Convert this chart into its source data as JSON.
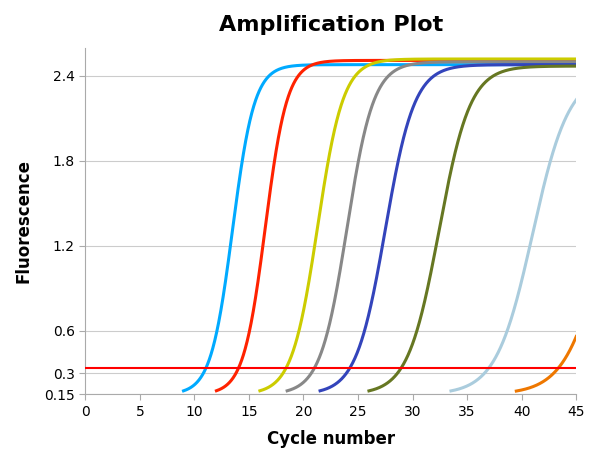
{
  "title": "Amplification Plot",
  "xlabel": "Cycle number",
  "ylabel": "Fluorescence",
  "xlim": [
    0,
    45
  ],
  "ylim": [
    0.15,
    2.6
  ],
  "yticks": [
    0.15,
    0.3,
    0.6,
    1.2,
    1.8,
    2.4
  ],
  "ytick_labels": [
    "0.15",
    "0.3",
    "0.6",
    "1.2",
    "1.8",
    "2.4"
  ],
  "xticks": [
    0,
    5,
    10,
    15,
    20,
    25,
    30,
    35,
    40,
    45
  ],
  "threshold_y": 0.335,
  "threshold_color": "#ff0000",
  "background_color": "#ffffff",
  "grid_color": "#cccccc",
  "curves": [
    {
      "color": "#00aaff",
      "x_start": 9.0,
      "ymax": 2.48,
      "ymin": 0.15,
      "k": 1.0
    },
    {
      "color": "#ff2200",
      "x_start": 12.0,
      "ymax": 2.51,
      "ymin": 0.15,
      "k": 1.0
    },
    {
      "color": "#cccc00",
      "x_start": 16.0,
      "ymax": 2.52,
      "ymin": 0.15,
      "k": 0.85
    },
    {
      "color": "#888888",
      "x_start": 18.5,
      "ymax": 2.5,
      "ymin": 0.15,
      "k": 0.82
    },
    {
      "color": "#3344bb",
      "x_start": 21.5,
      "ymax": 2.48,
      "ymin": 0.15,
      "k": 0.75
    },
    {
      "color": "#667722",
      "x_start": 26.0,
      "ymax": 2.47,
      "ymin": 0.15,
      "k": 0.7
    },
    {
      "color": "#aaccdd",
      "x_start": 33.5,
      "ymax": 2.42,
      "ymin": 0.15,
      "k": 0.6
    },
    {
      "color": "#ee7700",
      "x_start": 39.5,
      "ymax": 2.35,
      "ymin": 0.15,
      "k": 0.55
    }
  ]
}
